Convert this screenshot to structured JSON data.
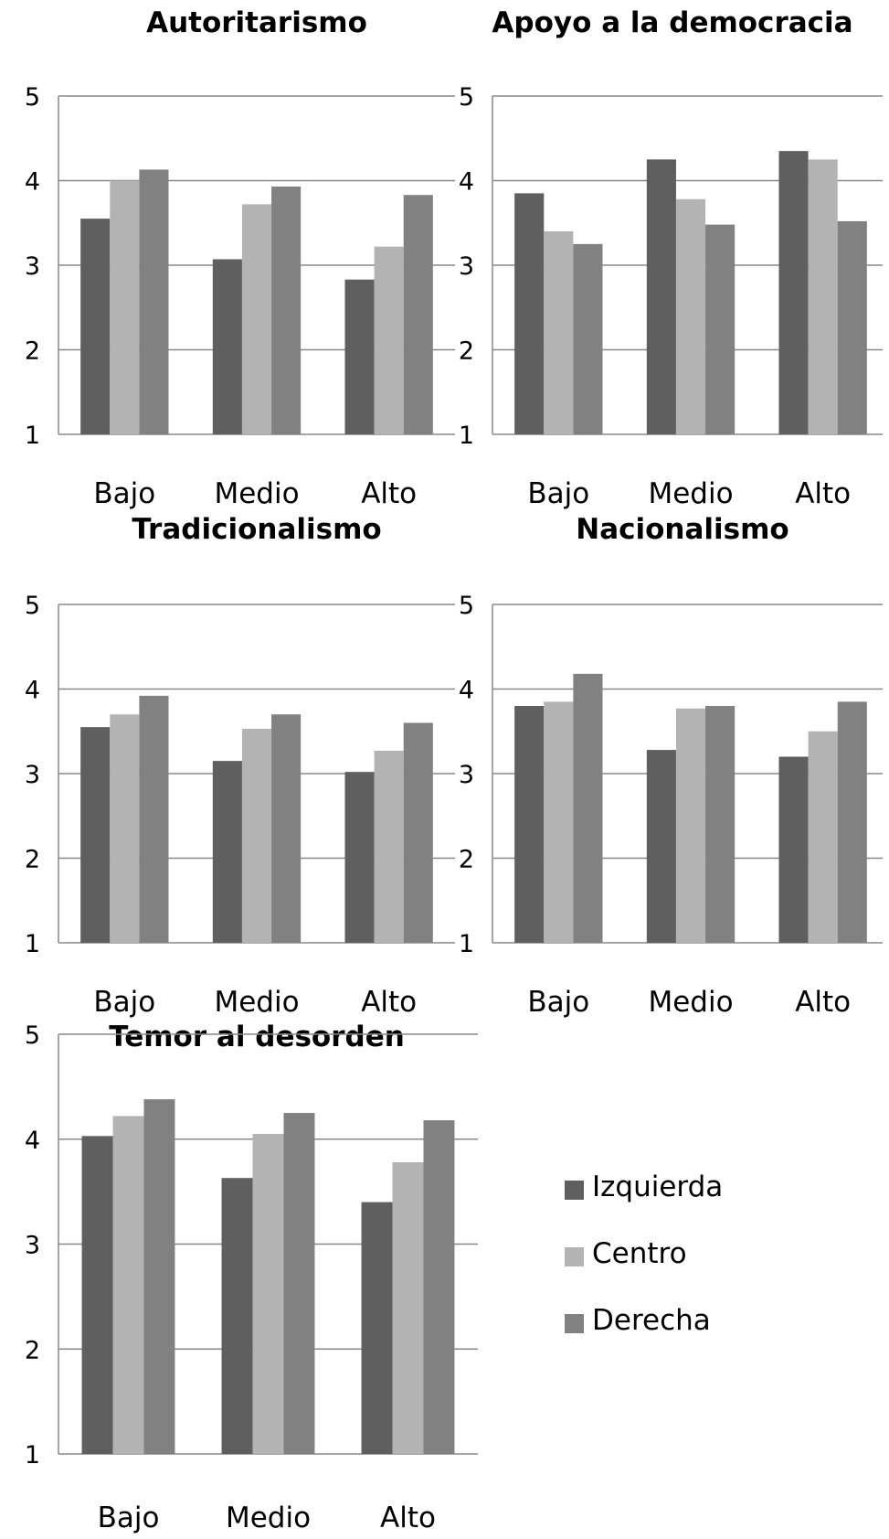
{
  "colors": {
    "izquierda": "#5f5f5f",
    "centro": "#b3b3b3",
    "derecha": "#818181",
    "gridline": "#888888",
    "axis": "#888888"
  },
  "legend": [
    {
      "label": "Izquierda",
      "color": "#5f5f5f"
    },
    {
      "label": "Centro",
      "color": "#b3b3b3"
    },
    {
      "label": "Derecha",
      "color": "#818181"
    }
  ],
  "chart_data": [
    {
      "type": "bar",
      "title": "Autoritarismo",
      "categories": [
        "Bajo",
        "Medio",
        "Alto"
      ],
      "yticks": [
        "1",
        "2",
        "3",
        "4",
        "5"
      ],
      "ylim": [
        1,
        5
      ],
      "grid": true,
      "series": [
        {
          "name": "Izquierda",
          "values": [
            3.55,
            3.07,
            2.83
          ]
        },
        {
          "name": "Centro",
          "values": [
            4.0,
            3.72,
            3.22
          ]
        },
        {
          "name": "Derecha",
          "values": [
            4.13,
            3.93,
            3.83
          ]
        }
      ]
    },
    {
      "type": "bar",
      "title": "Apoyo a la democracia",
      "categories": [
        "Bajo",
        "Medio",
        "Alto"
      ],
      "yticks": [
        "1",
        "2",
        "3",
        "4",
        "5"
      ],
      "ylim": [
        1,
        5
      ],
      "grid": true,
      "series": [
        {
          "name": "Izquierda",
          "values": [
            3.85,
            4.25,
            4.35
          ]
        },
        {
          "name": "Centro",
          "values": [
            3.4,
            3.78,
            4.25
          ]
        },
        {
          "name": "Derecha",
          "values": [
            3.25,
            3.48,
            3.52
          ]
        }
      ]
    },
    {
      "type": "bar",
      "title": "Tradicionalismo",
      "categories": [
        "Bajo",
        "Medio",
        "Alto"
      ],
      "yticks": [
        "1",
        "2",
        "3",
        "4",
        "5"
      ],
      "ylim": [
        1,
        5
      ],
      "grid": true,
      "series": [
        {
          "name": "Izquierda",
          "values": [
            3.55,
            3.15,
            3.02
          ]
        },
        {
          "name": "Centro",
          "values": [
            3.7,
            3.53,
            3.27
          ]
        },
        {
          "name": "Derecha",
          "values": [
            3.92,
            3.7,
            3.6
          ]
        }
      ]
    },
    {
      "type": "bar",
      "title": "Nacionalismo",
      "categories": [
        "Bajo",
        "Medio",
        "Alto"
      ],
      "yticks": [
        "1",
        "2",
        "3",
        "4",
        "5"
      ],
      "ylim": [
        1,
        5
      ],
      "grid": true,
      "series": [
        {
          "name": "Izquierda",
          "values": [
            3.8,
            3.28,
            3.2
          ]
        },
        {
          "name": "Centro",
          "values": [
            3.85,
            3.77,
            3.5
          ]
        },
        {
          "name": "Derecha",
          "values": [
            4.18,
            3.8,
            3.85
          ]
        }
      ]
    },
    {
      "type": "bar",
      "title": "Temor al desorden",
      "categories": [
        "Bajo",
        "Medio",
        "Alto"
      ],
      "yticks": [
        "1",
        "2",
        "3",
        "4",
        "5"
      ],
      "ylim": [
        1,
        5
      ],
      "grid": true,
      "series": [
        {
          "name": "Izquierda",
          "values": [
            4.03,
            3.63,
            3.4
          ]
        },
        {
          "name": "Centro",
          "values": [
            4.22,
            4.05,
            3.78
          ]
        },
        {
          "name": "Derecha",
          "values": [
            4.38,
            4.25,
            4.18
          ]
        }
      ]
    }
  ]
}
